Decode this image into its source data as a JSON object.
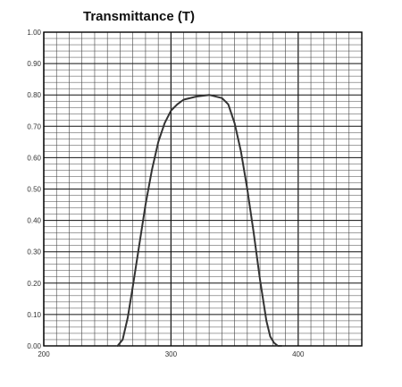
{
  "chart_data": {
    "type": "line",
    "title": "Transmittance (T)",
    "xlabel": "",
    "ylabel": "",
    "xlim": [
      200,
      450
    ],
    "ylim": [
      0,
      1.0
    ],
    "grid": true,
    "x_tick_labels": [
      "200",
      "300",
      "400"
    ],
    "x_ticks": [
      200,
      300,
      400
    ],
    "y_tick_labels": [
      "0.00",
      "0.10",
      "0.20",
      "0.30",
      "0.40",
      "0.50",
      "0.60",
      "0.70",
      "0.80",
      "0.90",
      "1.00"
    ],
    "y_ticks": [
      0,
      0.1,
      0.2,
      0.3,
      0.4,
      0.5,
      0.6,
      0.7,
      0.8,
      0.9,
      1.0
    ],
    "series": [
      {
        "x": [
          258,
          262,
          266,
          270,
          275,
          280,
          285,
          290,
          295,
          300,
          305,
          310,
          320,
          330,
          340,
          345,
          350,
          355,
          360,
          365,
          370,
          375,
          378,
          381,
          384,
          387
        ],
        "y": [
          0.0,
          0.02,
          0.09,
          0.19,
          0.32,
          0.45,
          0.56,
          0.65,
          0.71,
          0.75,
          0.77,
          0.785,
          0.795,
          0.8,
          0.79,
          0.77,
          0.71,
          0.62,
          0.5,
          0.36,
          0.21,
          0.08,
          0.03,
          0.01,
          0.0,
          0.0
        ],
        "color": "#333333"
      }
    ],
    "colors": {
      "grid": "#444444",
      "grid_major": "#111111",
      "line": "#333333"
    }
  }
}
